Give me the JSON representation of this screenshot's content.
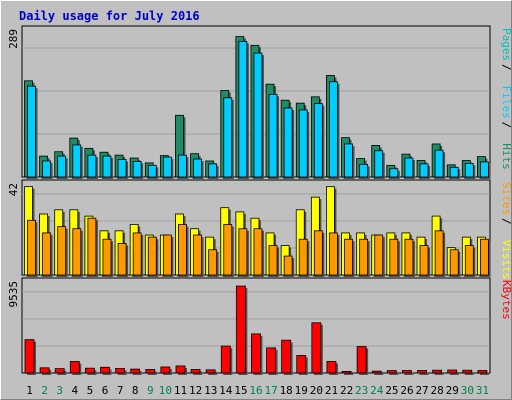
{
  "chart_data": {
    "type": "bar",
    "title": "Daily usage for July 2016",
    "days": [
      "1",
      "2",
      "3",
      "4",
      "5",
      "6",
      "7",
      "8",
      "9",
      "10",
      "11",
      "12",
      "13",
      "14",
      "15",
      "16",
      "17",
      "18",
      "19",
      "20",
      "21",
      "22",
      "23",
      "24",
      "25",
      "26",
      "27",
      "28",
      "29",
      "30",
      "31"
    ],
    "weekend_days": [
      "2",
      "3",
      "9",
      "10",
      "16",
      "17",
      "23",
      "24",
      "30",
      "31"
    ],
    "panels": [
      {
        "id": "top",
        "max_label": "289",
        "ymax": 289,
        "legend": [
          "Pages",
          "Files",
          "Hits"
        ],
        "series": [
          {
            "name": "Hits",
            "color": "#1e8c64",
            "values": [
              198,
              43,
              52,
              80,
              59,
              51,
              45,
              39,
              29,
              44,
              127,
              48,
              33,
              178,
              289,
              271,
              191,
              158,
              152,
              165,
              209,
              81,
              38,
              65,
              24,
              47,
              34,
              68,
              25,
              34,
              42
            ]
          },
          {
            "name": "Files",
            "color": "#00ccff",
            "values": [
              187,
              33,
              43,
              66,
              45,
              43,
              36,
              32,
              24,
              41,
              45,
              37,
              27,
              163,
              279,
              255,
              170,
              142,
              138,
              151,
              196,
              68,
              26,
              54,
              17,
              39,
              27,
              55,
              20,
              28,
              31
            ]
          },
          {
            "name": "Pages",
            "color": "#00c0c0",
            "values": [
              0,
              0,
              0,
              0,
              0,
              0,
              0,
              0,
              0,
              0,
              0,
              0,
              0,
              0,
              0,
              0,
              0,
              0,
              0,
              0,
              0,
              0,
              0,
              0,
              0,
              0,
              0,
              0,
              0,
              0,
              0
            ]
          }
        ]
      },
      {
        "id": "mid",
        "max_label": "42",
        "ymax": 42,
        "legend": [
          "Sites",
          "Visits"
        ],
        "series": [
          {
            "name": "Visits",
            "color": "#ffff00",
            "values": [
              42,
              29,
              31,
              31,
              28,
              21,
              21,
              24,
              19,
              19,
              29,
              22,
              18,
              32,
              30,
              27,
              20,
              14,
              31,
              37,
              42,
              20,
              20,
              19,
              20,
              20,
              18,
              28,
              13,
              18,
              18
            ]
          },
          {
            "name": "Sites",
            "color": "#ff9900",
            "values": [
              26,
              20,
              23,
              22,
              27,
              17,
              15,
              20,
              18,
              19,
              24,
              19,
              12,
              24,
              22,
              22,
              14,
              9,
              17,
              21,
              20,
              17,
              17,
              19,
              17,
              17,
              14,
              21,
              12,
              14,
              17
            ]
          }
        ]
      },
      {
        "id": "bot",
        "max_label": "9535",
        "ymax": 9535,
        "legend": [
          "KBytes"
        ],
        "series": [
          {
            "name": "KBytes",
            "color": "#ff0000",
            "values": [
              3600,
              560,
              470,
              1240,
              520,
              620,
              500,
              420,
              380,
              650,
              760,
              380,
              340,
              2910,
              9380,
              4220,
              2710,
              3540,
              1890,
              5420,
              1250,
              170,
              2860,
              200,
              260,
              270,
              280,
              300,
              320,
              300,
              270
            ]
          }
        ]
      }
    ]
  }
}
